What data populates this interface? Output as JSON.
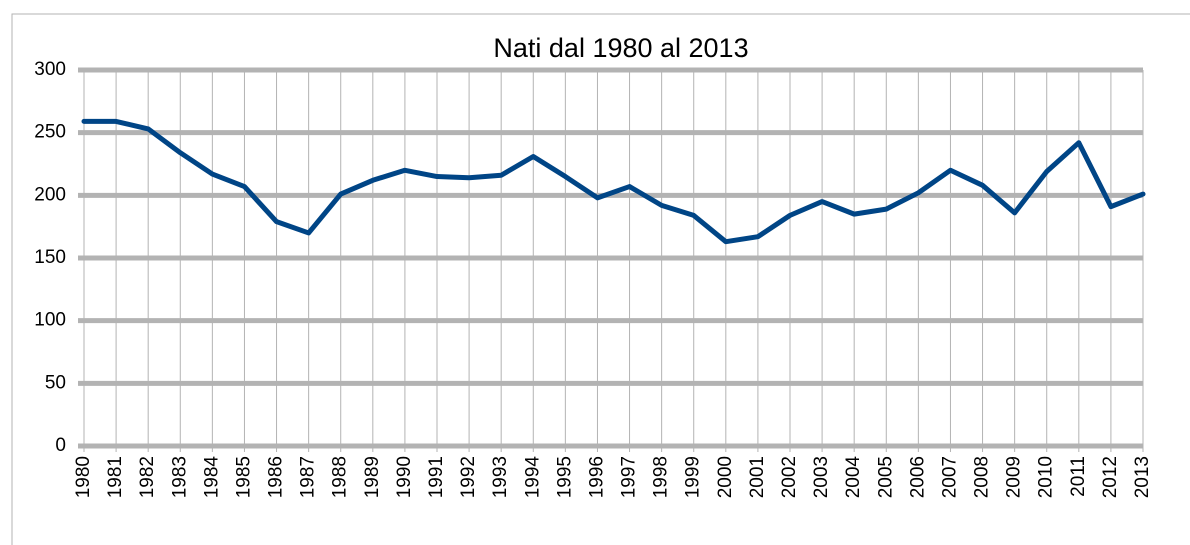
{
  "chart_data": {
    "type": "line",
    "title": "Nati dal 1980 al 2013",
    "categories": [
      "1980",
      "1981",
      "1982",
      "1983",
      "1984",
      "1985",
      "1986",
      "1987",
      "1988",
      "1989",
      "1990",
      "1991",
      "1992",
      "1993",
      "1994",
      "1995",
      "1996",
      "1997",
      "1998",
      "1999",
      "2000",
      "2001",
      "2002",
      "2003",
      "2004",
      "2005",
      "2006",
      "2007",
      "2008",
      "2009",
      "2010",
      "2011",
      "2012",
      "2013"
    ],
    "values": [
      259,
      259,
      253,
      234,
      217,
      207,
      179,
      170,
      201,
      212,
      220,
      215,
      214,
      216,
      231,
      215,
      198,
      207,
      192,
      184,
      163,
      167,
      184,
      195,
      185,
      189,
      202,
      220,
      208,
      186,
      219,
      242,
      191,
      201
    ],
    "color": "#004586",
    "ylim": [
      0,
      300
    ],
    "yticks": [
      0,
      50,
      100,
      150,
      200,
      250,
      300
    ],
    "grid": true
  }
}
